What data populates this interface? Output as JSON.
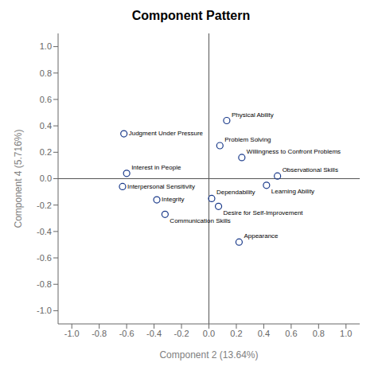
{
  "chart_data": {
    "type": "scatter",
    "title": "Component Pattern",
    "x_label": "Component 2 (13.64%)",
    "y_label": "Component 4 (5.716%)",
    "xlim": [
      -1.1,
      1.1
    ],
    "ylim": [
      -1.1,
      1.1
    ],
    "xticks": [
      {
        "value": -1.0,
        "label": "-1.0"
      },
      -0.8,
      -0.6,
      -0.4,
      -0.2,
      {
        "value": 0.0,
        "label": "0.0"
      },
      0.2,
      0.4,
      0.6,
      0.8,
      {
        "value": 1.0,
        "label": "1.0"
      }
    ],
    "yticks": [
      {
        "value": -1.0,
        "label": "-1.0"
      },
      -0.8,
      -0.6,
      -0.4,
      -0.2,
      {
        "value": 0.0,
        "label": "0.0"
      },
      0.2,
      0.4,
      0.6,
      0.8,
      {
        "value": 1.0,
        "label": "1.0"
      }
    ],
    "color": "#1a3a8a",
    "marker": "circle",
    "grid": false,
    "reference_lines": [
      {
        "axis": "x",
        "value": 0
      },
      {
        "axis": "y",
        "value": 0
      }
    ],
    "x": [
      -0.62,
      -0.6,
      -0.63,
      -0.38,
      -0.32,
      0.08,
      0.24,
      0.13,
      0.5,
      0.42,
      0.02,
      0.07,
      0.22
    ],
    "values": [
      0.34,
      0.04,
      -0.06,
      -0.16,
      -0.27,
      0.25,
      0.16,
      0.44,
      0.02,
      -0.05,
      -0.15,
      -0.21,
      -0.48
    ],
    "labels": [
      "Judgment Under Pressure",
      "Interest in People",
      "Interpersonal Sensitivity",
      "Integrity",
      "Communication Skills",
      "Problem Solving",
      "Willingness to Confront Problems",
      "Physical Ability",
      "Observational Skills",
      "Learning Ability",
      "Dependability",
      "Desire for Self-Improvement",
      "Appearance"
    ]
  }
}
